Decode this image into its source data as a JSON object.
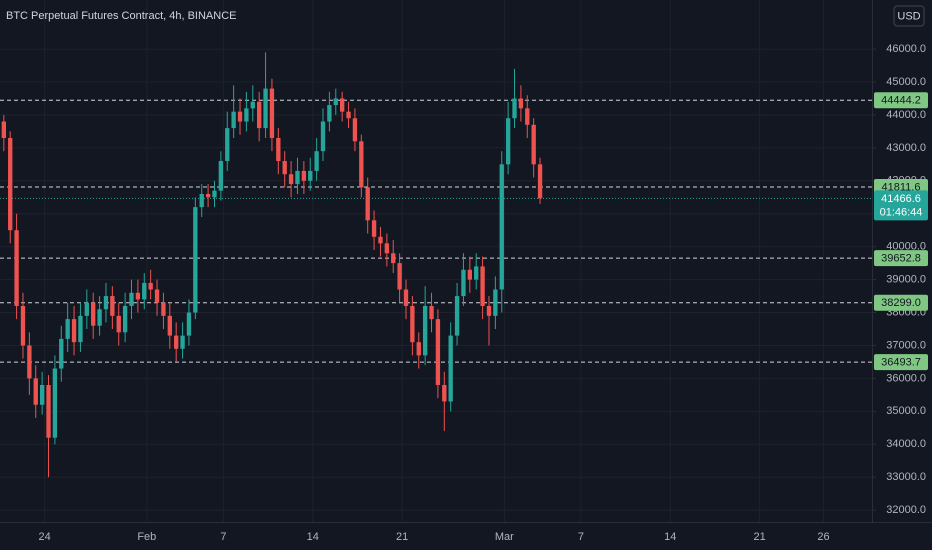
{
  "chart_data": {
    "type": "candlestick",
    "title": "BTC Perpetual Futures Contract, 4h, BINANCE",
    "currency": "USD",
    "up_color": "#26a69a",
    "down_color": "#ef5350",
    "grid": true,
    "ylim": [
      31640,
      47490
    ],
    "yticks": [
      {
        "value": 32000,
        "label": "32000.0"
      },
      {
        "value": 33000,
        "label": "33000.0"
      },
      {
        "value": 34000,
        "label": "34000.0"
      },
      {
        "value": 35000,
        "label": "35000.0"
      },
      {
        "value": 36000,
        "label": "36000.0"
      },
      {
        "value": 37000,
        "label": "37000.0"
      },
      {
        "value": 38000,
        "label": "38000.0"
      },
      {
        "value": 39000,
        "label": "39000.0"
      },
      {
        "value": 40000,
        "label": "40000.0"
      },
      {
        "value": 41000,
        "label": "41000.0"
      },
      {
        "value": 42000,
        "label": "42000.0"
      },
      {
        "value": 43000,
        "label": "43000.0"
      },
      {
        "value": 44000,
        "label": "44000.0"
      },
      {
        "value": 45000,
        "label": "45000.0"
      },
      {
        "value": 46000,
        "label": "46000.0"
      }
    ],
    "xlim": [
      -0.6,
      136
    ],
    "xticks": [
      {
        "value": 6.4,
        "label": "24"
      },
      {
        "value": 22.4,
        "label": "Feb"
      },
      {
        "value": 34.4,
        "label": "7"
      },
      {
        "value": 48.4,
        "label": "14"
      },
      {
        "value": 62.4,
        "label": "21"
      },
      {
        "value": 78.4,
        "label": "Mar"
      },
      {
        "value": 90.4,
        "label": "7"
      },
      {
        "value": 104.4,
        "label": "14"
      },
      {
        "value": 118.4,
        "label": "21"
      },
      {
        "value": 128.4,
        "label": "26"
      }
    ],
    "open": [
      43800,
      43300,
      40500,
      38200,
      37000,
      36000,
      35200,
      35800,
      34200,
      36300,
      37200,
      37800,
      37100,
      37900,
      38300,
      37600,
      38100,
      38500,
      37900,
      37400,
      38200,
      38600,
      38400,
      38900,
      38700,
      38300,
      37900,
      37300,
      36900,
      37300,
      38000,
      41200,
      41600,
      41500,
      41700,
      42600,
      43600,
      44100,
      43800,
      44200,
      44400,
      43600,
      44800,
      43300,
      42600,
      42200,
      41900,
      42300,
      42000,
      42300,
      42900,
      43800,
      44300,
      44500,
      44100,
      43900,
      43200,
      41800,
      40800,
      40300,
      40100,
      39800,
      39500,
      38700,
      38200,
      37100,
      36700,
      38200,
      37800,
      35800,
      35300,
      37300,
      38500,
      39300,
      39000,
      39400,
      38200,
      37900,
      38700,
      42500,
      43900,
      44500,
      44200,
      43700,
      42500
    ],
    "high": [
      44000,
      43500,
      41000,
      38600,
      37400,
      36400,
      36200,
      36100,
      36700,
      37600,
      38300,
      38200,
      38300,
      38700,
      38600,
      38500,
      38900,
      38800,
      38300,
      38600,
      39000,
      39000,
      39200,
      39300,
      39000,
      38600,
      38300,
      37700,
      37700,
      38400,
      41500,
      41900,
      41900,
      42000,
      42900,
      44100,
      44900,
      44500,
      44700,
      44900,
      44700,
      45900,
      45100,
      43600,
      42900,
      42600,
      42700,
      42600,
      42700,
      43300,
      44200,
      44700,
      44800,
      44700,
      44400,
      44200,
      43400,
      42100,
      41100,
      40600,
      40400,
      40200,
      39800,
      39000,
      38500,
      37400,
      38800,
      38600,
      38100,
      36200,
      37700,
      38900,
      39800,
      39700,
      39800,
      39700,
      38500,
      39100,
      42900,
      44400,
      45400,
      44900,
      44600,
      43900,
      42700
    ],
    "low": [
      42900,
      40100,
      37800,
      36600,
      35500,
      34800,
      34900,
      33000,
      34000,
      35900,
      36800,
      36700,
      36800,
      37500,
      37200,
      37300,
      37700,
      37500,
      37000,
      37100,
      37800,
      38000,
      38100,
      38400,
      37900,
      37500,
      36900,
      36500,
      36600,
      37000,
      37800,
      40900,
      41200,
      41200,
      41400,
      42300,
      43300,
      43400,
      43500,
      43800,
      43200,
      43300,
      42900,
      42200,
      41800,
      41500,
      41600,
      41600,
      41700,
      42000,
      42600,
      43500,
      44000,
      43800,
      43600,
      42900,
      41500,
      40400,
      39900,
      39700,
      39400,
      39200,
      38300,
      37800,
      36700,
      36300,
      36400,
      37400,
      35400,
      34400,
      35000,
      37000,
      38200,
      38600,
      38700,
      37800,
      37000,
      37500,
      38000,
      42200,
      43600,
      43800,
      43300,
      42100,
      41300
    ],
    "close": [
      43300,
      40500,
      38200,
      37000,
      36000,
      35200,
      35800,
      34200,
      36300,
      37200,
      37800,
      37100,
      37900,
      38300,
      37600,
      38100,
      38500,
      37900,
      37400,
      38200,
      38600,
      38400,
      38900,
      38700,
      38300,
      37900,
      37300,
      36900,
      37300,
      38000,
      41200,
      41600,
      41500,
      41700,
      42600,
      43600,
      44100,
      43800,
      44200,
      44400,
      43600,
      44800,
      43300,
      42600,
      42200,
      41900,
      42300,
      42000,
      42300,
      42900,
      43800,
      44300,
      44500,
      44100,
      43900,
      43200,
      41800,
      40800,
      40300,
      40100,
      39800,
      39500,
      38700,
      38200,
      37100,
      36700,
      38200,
      37800,
      35800,
      35300,
      37300,
      38500,
      39300,
      39000,
      39400,
      38200,
      37900,
      38700,
      42500,
      43900,
      44500,
      44200,
      43700,
      42500,
      41466.6
    ],
    "countdown": "01:46:44",
    "levels": {
      "color": "#81c784",
      "values": [
        44444.2,
        41811.6,
        39652.8,
        38299,
        36493.7
      ],
      "value_labels": [
        "44444.2",
        "41811.6",
        "39652.8",
        "38299.0",
        "36493.7"
      ]
    }
  }
}
